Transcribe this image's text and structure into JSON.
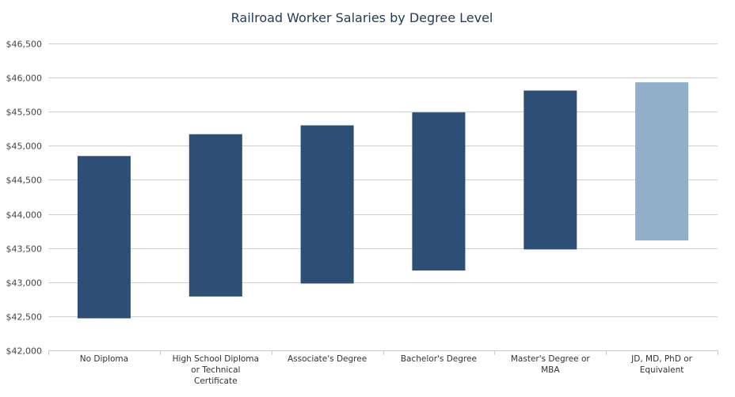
{
  "chart_data": {
    "type": "bar",
    "subtype": "floating-range",
    "title": "Railroad Worker Salaries by Degree Level",
    "xlabel": "",
    "ylabel": "",
    "ylim": [
      42000,
      46500
    ],
    "yticks": [
      42000,
      42500,
      43000,
      43500,
      44000,
      44500,
      45000,
      45500,
      46000,
      46500
    ],
    "ytick_labels": [
      "$42,000",
      "$42,500",
      "$43,000",
      "$43,500",
      "$44,000",
      "$44,500",
      "$45,000",
      "$45,500",
      "$46,000",
      "$46,500"
    ],
    "grid": true,
    "legend": "none",
    "categories": [
      "No Diploma",
      "High School Diploma or Technical Certificate",
      "Associate's Degree",
      "Bachelor's Degree",
      "Master's Degree or MBA",
      "JD, MD, PhD or Equivalent"
    ],
    "category_lines": [
      [
        "No Diploma"
      ],
      [
        "High School Diploma",
        "or Technical",
        "Certificate"
      ],
      [
        "Associate's Degree"
      ],
      [
        "Bachelor's Degree"
      ],
      [
        "Master's Degree or",
        "MBA"
      ],
      [
        "JD, MD, PhD or",
        "Equivalent"
      ]
    ],
    "low": [
      42470,
      42790,
      42980,
      43170,
      43480,
      43610
    ],
    "high": [
      44850,
      45170,
      45300,
      45490,
      45810,
      45930
    ],
    "colors": [
      "#2e4f75",
      "#2e4f75",
      "#2e4f75",
      "#2e4f75",
      "#2e4f75",
      "#91afc8"
    ]
  }
}
